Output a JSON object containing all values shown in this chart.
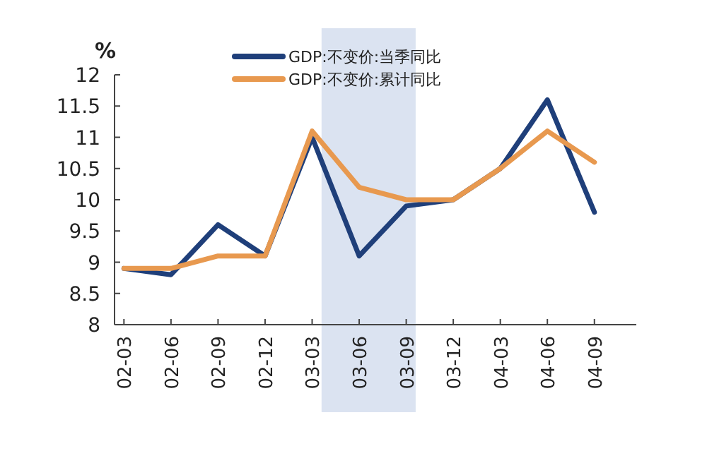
{
  "chart_data": {
    "type": "line",
    "ylabel": "%",
    "categories": [
      "02-03",
      "02-06",
      "02-09",
      "02-12",
      "03-03",
      "03-06",
      "03-09",
      "03-12",
      "04-03",
      "04-06",
      "04-09"
    ],
    "series": [
      {
        "name": "GDP:不变价:当季同比",
        "color": "#1f3f7a",
        "values": [
          8.9,
          8.8,
          9.6,
          9.1,
          11.0,
          9.1,
          9.9,
          10.0,
          10.5,
          11.6,
          9.8
        ]
      },
      {
        "name": "GDP:不变价:累计同比",
        "color": "#e8994f",
        "values": [
          8.9,
          8.9,
          9.1,
          9.1,
          11.1,
          10.2,
          10.0,
          10.0,
          10.5,
          11.1,
          10.6
        ]
      }
    ],
    "ylim": [
      8,
      12
    ],
    "yticks": [
      8,
      8.5,
      9,
      9.5,
      10,
      10.5,
      11,
      11.5,
      12
    ],
    "legend": "top",
    "grid": false,
    "marker": "none",
    "line_style": "solid"
  }
}
